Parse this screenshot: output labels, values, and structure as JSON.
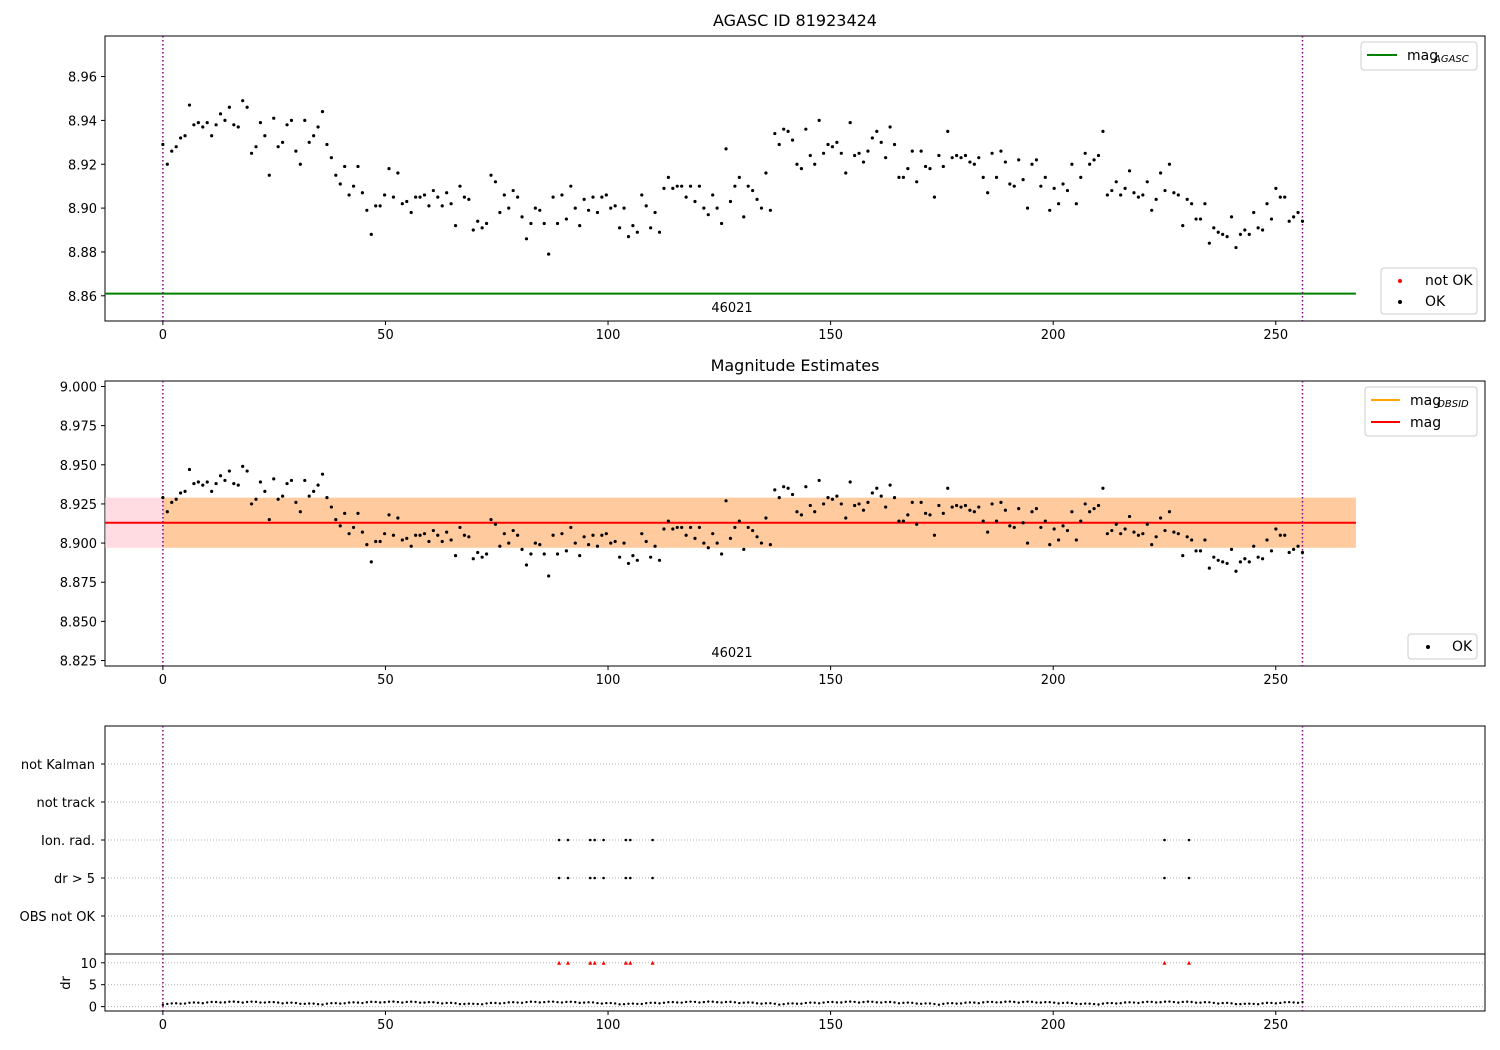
{
  "chart_data": [
    {
      "id": "agasc",
      "type": "scatter",
      "title": "AGASC ID 81923424",
      "xlim": [
        -13,
        297
      ],
      "ylim": [
        8.8485,
        8.9785
      ],
      "xticks": [
        0,
        50,
        100,
        150,
        200,
        250
      ],
      "yticks": [
        8.86,
        8.88,
        8.9,
        8.92,
        8.94,
        8.96
      ],
      "ytick_labels": [
        "8.86",
        "8.88",
        "8.90",
        "8.92",
        "8.94",
        "8.96"
      ],
      "obsid_label": "46021",
      "obs_bounds": [
        0,
        256
      ],
      "hline": {
        "y": 8.861,
        "x": [
          -13,
          268
        ],
        "color": "#008000",
        "label": "mag",
        "label_sub": "AGASC"
      },
      "legend_lines": [
        {
          "label": "mag",
          "label_sub": "AGASC",
          "color": "#008000"
        }
      ],
      "legend_points": [
        {
          "label": "not OK",
          "color": "#ff0000"
        },
        {
          "label": "OK",
          "color": "#000000"
        }
      ],
      "series": [
        {
          "name": "OK",
          "color": "#000000",
          "x": "auto:0..256",
          "y": "shared:mag"
        }
      ]
    },
    {
      "id": "estimates",
      "type": "scatter",
      "title": "Magnitude Estimates",
      "xlim": [
        -13,
        297
      ],
      "ylim": [
        8.8215,
        9.0035
      ],
      "xticks": [
        0,
        50,
        100,
        150,
        200,
        250
      ],
      "yticks": [
        8.825,
        8.85,
        8.875,
        8.9,
        8.925,
        8.95,
        8.975,
        9.0
      ],
      "ytick_labels": [
        "8.825",
        "8.850",
        "8.875",
        "8.900",
        "8.925",
        "8.950",
        "8.975",
        "9.000"
      ],
      "obsid_label": "46021",
      "obs_bounds": [
        0,
        256
      ],
      "bands": [
        {
          "x": [
            -13,
            268
          ],
          "y": [
            8.897,
            8.929
          ],
          "color": "#ffc0cb",
          "opacity": 0.55
        },
        {
          "x": [
            0,
            268
          ],
          "y": [
            8.897,
            8.929
          ],
          "color": "#ffa500",
          "opacity": 0.3
        }
      ],
      "hline": {
        "y": 8.913,
        "x": [
          -13,
          268
        ],
        "color": "#ff0000"
      },
      "legend_lines": [
        {
          "label": "mag",
          "label_sub": "OBSID",
          "color": "#ffa500"
        },
        {
          "label": "mag",
          "label_sub": "",
          "color": "#ff0000"
        }
      ],
      "legend_points": [
        {
          "label": "OK",
          "color": "#000000"
        }
      ],
      "series": [
        {
          "name": "OK",
          "color": "#000000",
          "x": "auto:0..256",
          "y": "shared:mag"
        }
      ]
    },
    {
      "id": "flags",
      "type": "scatter",
      "xlim": [
        -13,
        297
      ],
      "categories": [
        "OBS not OK",
        "dr > 5",
        "Ion. rad.",
        "not track",
        "not Kalman"
      ],
      "flag_points": {
        "Ion. rad.": [
          89,
          91,
          96,
          97,
          99,
          104,
          105,
          110,
          225,
          230.5
        ],
        "dr > 5": [
          89,
          91,
          96,
          97,
          99,
          104,
          105,
          110,
          225,
          230.5
        ]
      },
      "obs_bounds": [
        0,
        256
      ]
    },
    {
      "id": "dr",
      "type": "scatter",
      "ylabel": "dr",
      "xlim": [
        -13,
        297
      ],
      "ylim": [
        -1,
        12
      ],
      "xticks": [
        0,
        50,
        100,
        150,
        200,
        250
      ],
      "yticks": [
        0,
        5,
        10
      ],
      "ytick_labels": [
        "0",
        "5",
        "10"
      ],
      "capped_color": "#ff0000",
      "capped_x": [
        89,
        91,
        96,
        97,
        99,
        104,
        105,
        110,
        225,
        230.5
      ],
      "obs_bounds": [
        0,
        256
      ]
    }
  ],
  "mag": [
    8.929,
    8.92,
    8.926,
    8.928,
    8.932,
    8.933,
    8.947,
    8.938,
    8.939,
    8.937,
    8.939,
    8.933,
    8.938,
    8.943,
    8.94,
    8.946,
    8.938,
    8.937,
    8.949,
    8.946,
    8.925,
    8.928,
    8.939,
    8.933,
    8.915,
    8.941,
    8.928,
    8.93,
    8.938,
    8.94,
    8.926,
    8.92,
    8.94,
    8.93,
    8.933,
    8.937,
    8.944,
    8.929,
    8.923,
    8.915,
    8.911,
    8.919,
    8.906,
    8.91,
    8.919,
    8.907,
    8.899,
    8.888,
    8.901,
    8.901,
    8.906,
    8.918,
    8.905,
    8.916,
    8.902,
    8.903,
    8.898,
    8.905,
    8.905,
    8.906,
    8.901,
    8.908,
    8.905,
    8.901,
    8.907,
    8.902,
    8.892,
    8.91,
    8.905,
    8.904,
    8.89,
    8.894,
    8.891,
    8.893,
    8.915,
    8.912,
    8.898,
    8.906,
    8.9,
    8.908,
    8.905,
    8.896,
    8.886,
    8.893,
    8.9,
    8.899,
    8.893,
    8.879,
    8.905,
    8.893,
    8.906,
    8.895,
    8.91,
    8.9,
    8.892,
    8.904,
    8.899,
    8.905,
    8.898,
    8.905,
    8.906,
    8.9,
    8.901,
    8.891,
    8.9,
    8.887,
    8.892,
    8.889,
    8.906,
    8.901,
    8.891,
    8.898,
    8.889,
    8.909,
    8.914,
    8.909,
    8.91,
    8.91,
    8.905,
    8.91,
    8.903,
    8.91,
    8.9,
    8.897,
    8.906,
    8.9,
    8.893,
    8.927,
    8.903,
    8.91,
    8.914,
    8.896,
    8.91,
    8.908,
    8.904,
    8.9,
    8.916,
    8.899,
    8.934,
    8.929,
    8.936,
    8.935,
    8.931,
    8.92,
    8.918,
    8.936,
    8.924,
    8.92,
    8.94,
    8.925,
    8.929,
    8.928,
    8.93,
    8.925,
    8.916,
    8.939,
    8.924,
    8.925,
    8.921,
    8.926,
    8.932,
    8.935,
    8.93,
    8.923,
    8.937,
    8.929,
    8.914,
    8.914,
    8.918,
    8.926,
    8.912,
    8.926,
    8.919,
    8.918,
    8.905,
    8.924,
    8.919,
    8.935,
    8.923,
    8.924,
    8.923,
    8.924,
    8.921,
    8.92,
    8.923,
    8.914,
    8.907,
    8.925,
    8.914,
    8.926,
    8.921,
    8.911,
    8.91,
    8.922,
    8.913,
    8.9,
    8.92,
    8.922,
    8.91,
    8.914,
    8.899,
    8.909,
    8.902,
    8.911,
    8.908,
    8.92,
    8.902,
    8.914,
    8.925,
    8.92,
    8.922,
    8.924,
    8.935,
    8.906,
    8.908,
    8.912,
    8.906,
    8.909,
    8.917,
    8.907,
    8.905,
    8.906,
    8.912,
    8.899,
    8.904,
    8.916,
    8.908,
    8.92,
    8.907,
    8.906,
    8.892,
    8.904,
    8.902,
    8.895,
    8.895,
    8.902,
    8.884,
    8.891,
    8.889,
    8.888,
    8.887,
    8.896,
    8.882,
    8.888,
    8.89,
    8.888,
    8.898,
    8.891,
    8.89,
    8.902,
    8.895,
    8.909,
    8.905,
    8.905,
    8.894,
    8.896,
    8.898,
    8.894
  ]
}
